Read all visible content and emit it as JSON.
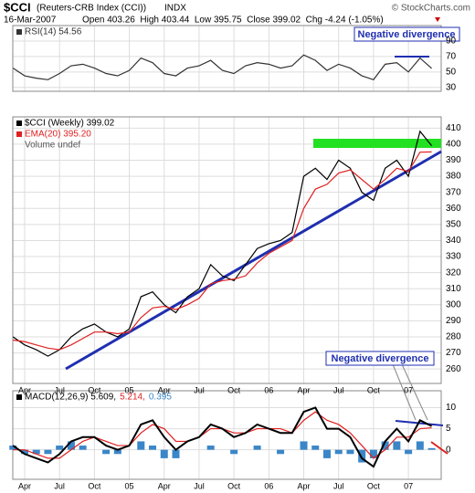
{
  "header": {
    "symbol": "$CCI",
    "name": "(Reuters-CRB Index (CCI))",
    "exchange": "INDX",
    "credit": "© StockCharts.com",
    "date": "16-Mar-2007",
    "quote": "Open 403.26  High 403.44  Low 395.75  Close 399.02  Chg -4.24 (-1.05%)"
  },
  "annotations": [
    "Negative divergence",
    "Negative divergence"
  ],
  "chart_data": [
    {
      "type": "line",
      "ylim": [
        25,
        110
      ],
      "yticks": [
        30,
        50,
        70,
        90
      ],
      "grid": true,
      "series": [
        {
          "name": "RSI(14) 54.56",
          "color": "#333333",
          "values": [
            55,
            45,
            42,
            40,
            48,
            58,
            60,
            55,
            48,
            45,
            52,
            68,
            62,
            48,
            45,
            55,
            58,
            65,
            52,
            48,
            58,
            62,
            60,
            55,
            58,
            72,
            65,
            52,
            60,
            55,
            45,
            40,
            60,
            62,
            50,
            68,
            54.56
          ]
        }
      ]
    },
    {
      "type": "line",
      "ylim": [
        251,
        417
      ],
      "yticks": [
        260,
        270,
        280,
        290,
        300,
        310,
        320,
        330,
        340,
        350,
        360,
        370,
        380,
        390,
        400,
        410
      ],
      "grid": true,
      "categories": [
        null,
        "Apr",
        null,
        null,
        "Jul",
        null,
        null,
        "Oct",
        null,
        null,
        "05",
        null,
        null,
        "Apr",
        null,
        null,
        "Jul",
        null,
        null,
        "Oct",
        null,
        null,
        "06",
        null,
        null,
        "Apr",
        null,
        null,
        "Jul",
        null,
        null,
        "Oct",
        null,
        null,
        "07",
        null,
        null
      ],
      "series": [
        {
          "name": "$CCI (Weekly) 399.02",
          "color": "#000000",
          "values": [
            280,
            275,
            272,
            268,
            272,
            280,
            285,
            288,
            283,
            280,
            285,
            305,
            308,
            300,
            295,
            305,
            310,
            325,
            318,
            315,
            325,
            335,
            338,
            340,
            345,
            380,
            385,
            378,
            390,
            385,
            370,
            365,
            385,
            390,
            380,
            408,
            399.02
          ]
        },
        {
          "name": "EMA(20) 395.20",
          "color": "#e02020",
          "values": [
            278,
            277,
            275,
            273,
            272,
            275,
            279,
            283,
            283,
            282,
            283,
            292,
            298,
            299,
            297,
            300,
            304,
            313,
            315,
            316,
            318,
            326,
            332,
            336,
            340,
            360,
            372,
            375,
            382,
            384,
            378,
            372,
            378,
            385,
            383,
            395,
            395.2
          ]
        }
      ],
      "volume_label": "Volume undef"
    },
    {
      "type": "macd",
      "ylim": [
        -7,
        14
      ],
      "yticks": [
        0,
        5,
        10
      ],
      "grid": true,
      "categories": [
        null,
        "Apr",
        null,
        null,
        "Jul",
        null,
        null,
        "Oct",
        null,
        null,
        "05",
        null,
        null,
        "Apr",
        null,
        null,
        "Jul",
        null,
        null,
        "Oct",
        null,
        null,
        "06",
        null,
        null,
        "Apr",
        null,
        null,
        "Jul",
        null,
        null,
        "Oct",
        null,
        null,
        "07",
        null,
        null
      ],
      "series": [
        {
          "name": "MACD(12,26,9) 5.609,",
          "color": "#000000",
          "values": [
            1,
            -1,
            -2,
            -3,
            -1,
            2,
            3,
            3,
            1,
            0,
            1,
            6,
            7,
            3,
            0,
            2,
            3,
            6,
            5,
            3,
            4,
            6,
            5,
            4,
            4,
            9,
            10,
            5,
            5,
            3,
            -2,
            -4,
            2,
            5,
            2,
            7,
            5.609
          ]
        },
        {
          "name": "5.214,",
          "color": "#e02020",
          "values": [
            0,
            0,
            -1,
            -2,
            -2,
            0,
            2,
            3,
            2,
            1,
            1,
            4,
            6,
            5,
            2,
            2,
            3,
            5,
            5,
            4,
            4,
            5,
            5,
            5,
            4,
            7,
            9,
            7,
            6,
            4,
            1,
            -2,
            0,
            3,
            3,
            5,
            5.214
          ]
        },
        {
          "name": "0.395",
          "color": "#3a86c8",
          "values": [
            1,
            -1,
            -1,
            -1,
            1,
            2,
            1,
            0,
            -1,
            -1,
            0,
            2,
            1,
            -2,
            -2,
            0,
            0,
            1,
            0,
            -1,
            0,
            1,
            0,
            -1,
            0,
            2,
            1,
            -2,
            -1,
            -1,
            -3,
            -2,
            2,
            2,
            -1,
            2,
            0.395
          ]
        }
      ]
    }
  ]
}
